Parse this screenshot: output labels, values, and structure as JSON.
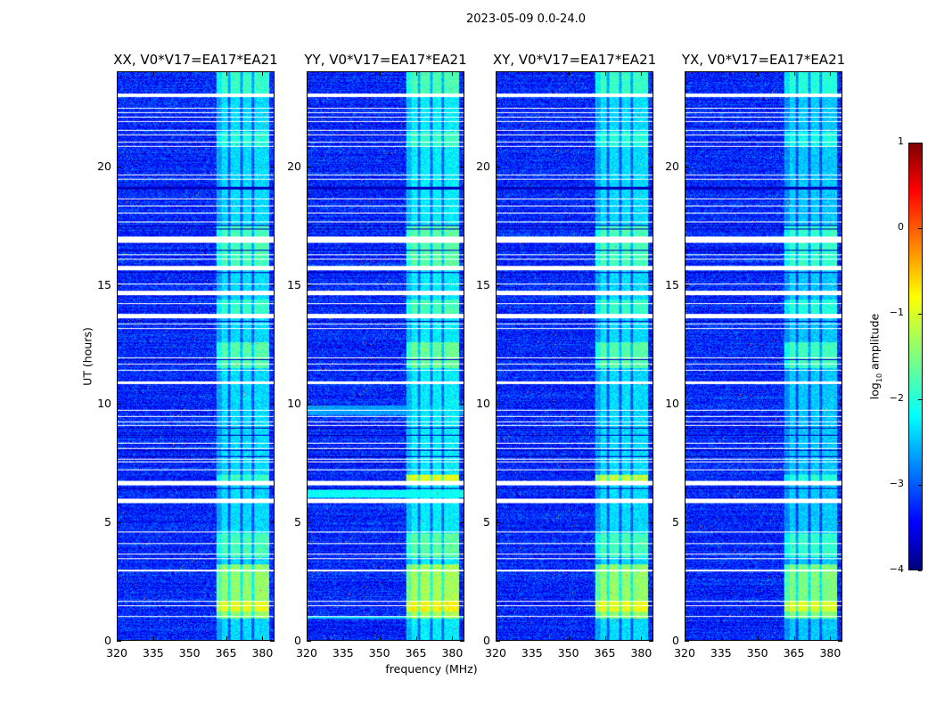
{
  "chart_data": {
    "type": "heatmap",
    "title": "2023-05-09 0.0-24.0",
    "xlabel": "frequency (MHz)",
    "ylabel": "UT (hours)",
    "xlim": [
      320,
      385
    ],
    "ylim": [
      0,
      24
    ],
    "xticks": [
      "320",
      "335",
      "350",
      "365",
      "380"
    ],
    "xtick_values": [
      320,
      335,
      350,
      365,
      380
    ],
    "yticks": [
      "0",
      "5",
      "10",
      "15",
      "20"
    ],
    "ytick_values": [
      0,
      5,
      10,
      15,
      20
    ],
    "colorbar": {
      "label_main": "log",
      "label_sub": "10",
      "label_rest": " amplitude",
      "range": [
        -4,
        1
      ],
      "ticks": [
        "1",
        "0",
        "−1",
        "−2",
        "−3",
        "−4"
      ],
      "tick_values": [
        1,
        0,
        -1,
        -2,
        -3,
        -4
      ],
      "colormap": "jet"
    },
    "background_log_amplitude": -3.2,
    "bright_band_mhz": [
      361,
      383
    ],
    "band_gaps_mhz": [
      366.5,
      371.5,
      376.5
    ],
    "flagged_hours": [
      [
        22.95,
        23.1
      ],
      [
        22.45,
        22.5
      ],
      [
        22.27,
        22.31
      ],
      [
        22.08,
        22.12
      ],
      [
        21.89,
        21.93
      ],
      [
        21.52,
        21.56
      ],
      [
        21.33,
        21.37
      ],
      [
        21.03,
        21.07
      ],
      [
        20.84,
        20.88
      ],
      [
        19.64,
        19.68
      ],
      [
        19.45,
        19.49
      ],
      [
        18.63,
        18.67
      ],
      [
        18.33,
        18.37
      ],
      [
        18.03,
        18.07
      ],
      [
        17.65,
        17.69
      ],
      [
        16.77,
        17.07
      ],
      [
        16.27,
        16.31
      ],
      [
        16.08,
        16.12
      ],
      [
        15.61,
        15.8
      ],
      [
        15.02,
        15.06
      ],
      [
        14.56,
        14.75
      ],
      [
        14.18,
        14.22
      ],
      [
        13.58,
        13.77
      ],
      [
        13.34,
        13.38
      ],
      [
        13.15,
        13.19
      ],
      [
        11.91,
        11.95
      ],
      [
        11.65,
        11.69
      ],
      [
        11.39,
        11.43
      ],
      [
        10.8,
        10.92
      ],
      [
        9.7,
        9.74
      ],
      [
        9.44,
        9.48
      ],
      [
        9.21,
        9.25
      ],
      [
        9.06,
        9.1
      ],
      [
        8.31,
        8.35
      ],
      [
        8.08,
        8.12
      ],
      [
        7.63,
        7.67
      ],
      [
        7.52,
        7.56
      ],
      [
        7.18,
        7.22
      ],
      [
        6.53,
        6.72
      ],
      [
        5.78,
        5.97
      ],
      [
        4.56,
        4.6
      ],
      [
        4.07,
        4.11
      ],
      [
        3.62,
        3.66
      ],
      [
        3.43,
        3.47
      ],
      [
        2.91,
        2.95
      ],
      [
        1.63,
        1.67
      ],
      [
        1.44,
        1.48
      ],
      [
        0.96,
        1.0
      ]
    ],
    "dark_hours": [
      [
        19.05,
        19.15
      ],
      [
        17.5,
        17.54
      ],
      [
        17.35,
        17.39
      ],
      [
        16.45,
        16.49
      ],
      [
        15.51,
        15.55
      ],
      [
        13.45,
        13.49
      ],
      [
        11.84,
        11.88
      ],
      [
        8.95,
        8.99
      ],
      [
        8.65,
        8.69
      ],
      [
        8.01,
        8.05
      ],
      [
        7.75,
        7.79
      ],
      [
        6.4,
        6.44
      ]
    ],
    "band_boosts": [
      {
        "hours": [
          0.9,
          3.2
        ],
        "delta": 1.2
      },
      {
        "hours": [
          1.2,
          1.6
        ],
        "delta": 1.8
      },
      {
        "hours": [
          3.5,
          4.5
        ],
        "delta": 0.7
      },
      {
        "hours": [
          11.5,
          12.6
        ],
        "delta": 0.8
      },
      {
        "hours": [
          13.8,
          14.4
        ],
        "delta": 0.6
      },
      {
        "hours": [
          15.8,
          17.5
        ],
        "delta": 0.7
      },
      {
        "hours": [
          20.9,
          21.5
        ],
        "delta": 0.5
      },
      {
        "hours": [
          23.1,
          24.0
        ],
        "delta": 0.6
      }
    ],
    "panels": [
      {
        "title": "XX, V0*V17=EA17*EA21",
        "band_level": -2.3,
        "event_6_8h": 0.6,
        "broadband": []
      },
      {
        "title": "YY, V0*V17=EA17*EA21",
        "band_level": -2.2,
        "event_6_8h": 1.6,
        "broadband": [
          {
            "hours": [
              6.0,
              6.35
            ],
            "level": -2.1
          },
          {
            "hours": [
              9.5,
              9.9
            ],
            "level": -2.6
          },
          {
            "hours": [
              0.9,
              1.0
            ],
            "level": -2.3
          }
        ]
      },
      {
        "title": "XY, V0*V17=EA17*EA21",
        "band_level": -2.3,
        "event_6_8h": 1.5,
        "broadband": []
      },
      {
        "title": "YX, V0*V17=EA17*EA21",
        "band_level": -2.4,
        "event_6_8h": 0.6,
        "broadband": []
      }
    ]
  }
}
